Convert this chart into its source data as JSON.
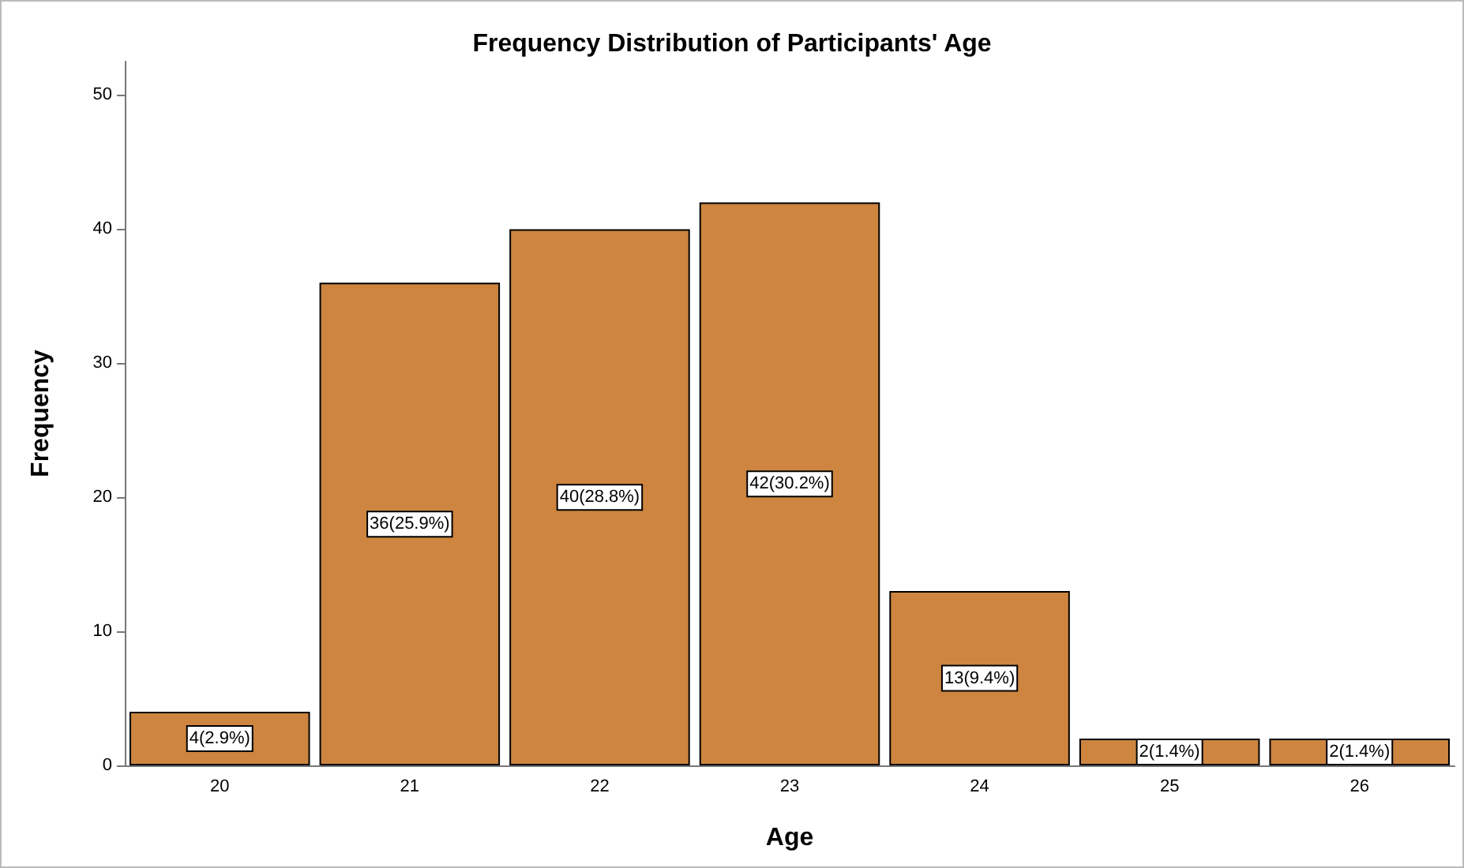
{
  "chart_data": {
    "type": "bar",
    "title": "Frequency Distribution of Participants' Age",
    "xlabel": "Age",
    "ylabel": "Frequency",
    "categories": [
      "20",
      "21",
      "22",
      "23",
      "24",
      "25",
      "26"
    ],
    "values": [
      4,
      36,
      40,
      42,
      13,
      2,
      2
    ],
    "value_labels": [
      "4(2.9%)",
      "36(25.9%)",
      "40(28.8%)",
      "42(30.2%)",
      "13(9.4%)",
      "2(1.4%)",
      "2(1.4%)"
    ],
    "color": "#cd853f",
    "ylim": [
      0,
      52.5
    ],
    "yticks": [
      0,
      10,
      20,
      30,
      40,
      50
    ],
    "grid": false
  }
}
